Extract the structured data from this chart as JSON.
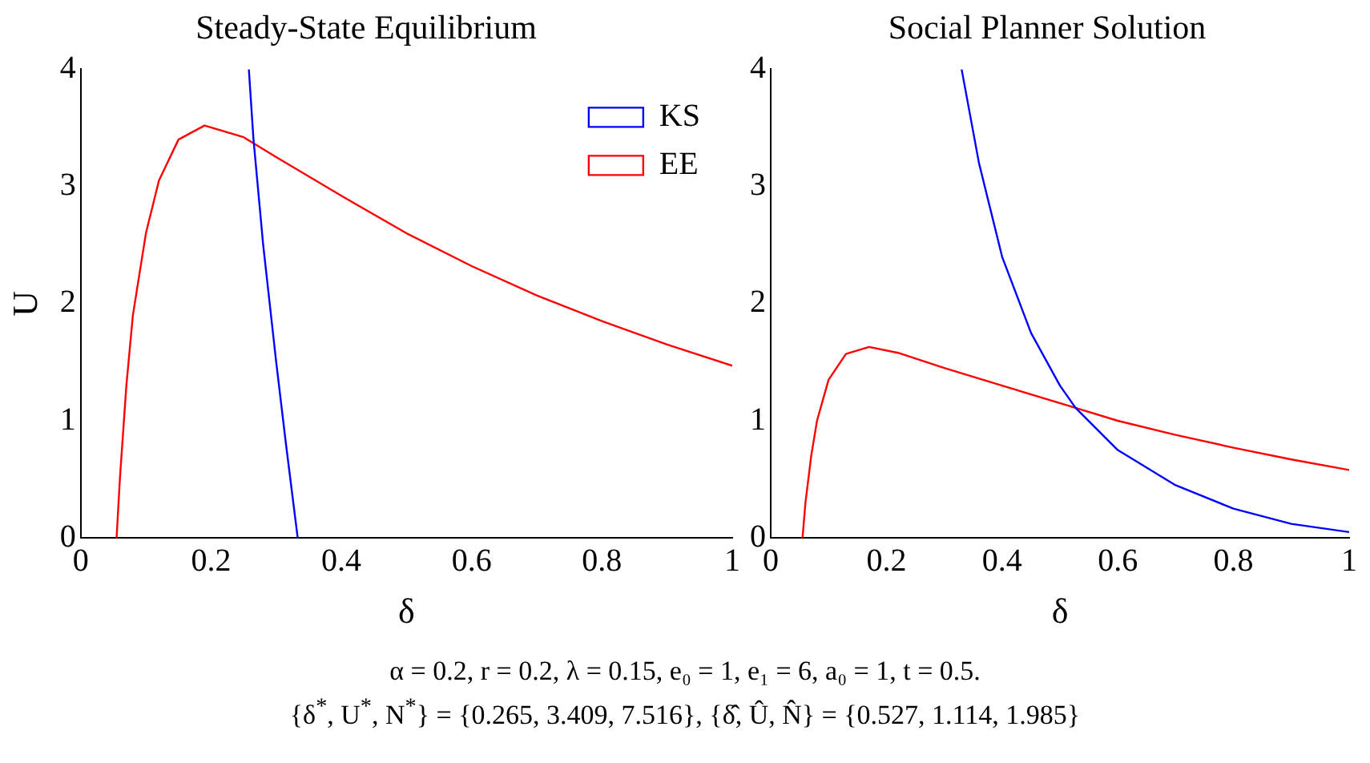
{
  "chart_data": [
    {
      "type": "line",
      "title": "Steady-State Equilibrium",
      "xlabel": "δ",
      "ylabel": "U",
      "xlim": [
        0,
        1
      ],
      "ylim": [
        0,
        4
      ],
      "xticks": [
        0,
        0.2,
        0.4,
        0.6,
        0.8,
        1
      ],
      "yticks": [
        0,
        1,
        2,
        3,
        4
      ],
      "grid": false,
      "legend": "top right",
      "marker": "none",
      "line_style": "solid",
      "series": [
        {
          "name": "KS",
          "color": "#0000ff",
          "x": [
            0.258,
            0.265,
            0.28,
            0.3,
            0.315,
            0.333
          ],
          "values": [
            4,
            3.41,
            2.5,
            1.5,
            0.8,
            0
          ]
        },
        {
          "name": "EE",
          "color": "#ff0000",
          "x": [
            0.055,
            0.06,
            0.07,
            0.08,
            0.1,
            0.12,
            0.15,
            0.19,
            0.25,
            0.3,
            0.4,
            0.5,
            0.6,
            0.7,
            0.8,
            0.9,
            1
          ],
          "values": [
            0,
            0.5,
            1.3,
            1.9,
            2.6,
            3.05,
            3.4,
            3.52,
            3.42,
            3.25,
            2.92,
            2.6,
            2.32,
            2.07,
            1.85,
            1.65,
            1.47
          ]
        }
      ],
      "annotations": [
        "α = 0.2, r = 0.2, λ = 0.15, e₀ = 1, e₁ = 6, a₀ = 1, t = 0.5.",
        "{δ$^{*}$, U$^{*}$, N$^{*}$} = {0.265, 3.409, 7.516}, {δ̂, Û, N̂} = {0.527, 1.114, 1.985}"
      ]
    },
    {
      "type": "line",
      "title": "Social Planner Solution",
      "xlabel": "δ",
      "xlim": [
        0,
        1
      ],
      "ylim": [
        0,
        4
      ],
      "xticks": [
        0,
        0.2,
        0.4,
        0.6,
        0.8,
        1
      ],
      "yticks": [
        0,
        1,
        2,
        3,
        4
      ],
      "grid": false,
      "legend": false,
      "marker": "none",
      "line_style": "solid",
      "series": [
        {
          "color": "#0000ff",
          "x": [
            0.33,
            0.36,
            0.4,
            0.45,
            0.5,
            0.527,
            0.6,
            0.7,
            0.8,
            0.9,
            1
          ],
          "values": [
            4,
            3.2,
            2.4,
            1.75,
            1.3,
            1.11,
            0.75,
            0.45,
            0.25,
            0.12,
            0.05
          ]
        },
        {
          "color": "#ff0000",
          "x": [
            0.055,
            0.06,
            0.07,
            0.08,
            0.1,
            0.13,
            0.17,
            0.22,
            0.3,
            0.4,
            0.527,
            0.6,
            0.7,
            0.8,
            0.9,
            1
          ],
          "values": [
            0,
            0.3,
            0.7,
            1.0,
            1.35,
            1.57,
            1.63,
            1.58,
            1.45,
            1.3,
            1.11,
            1.0,
            0.88,
            0.77,
            0.67,
            0.58
          ]
        }
      ]
    }
  ]
}
